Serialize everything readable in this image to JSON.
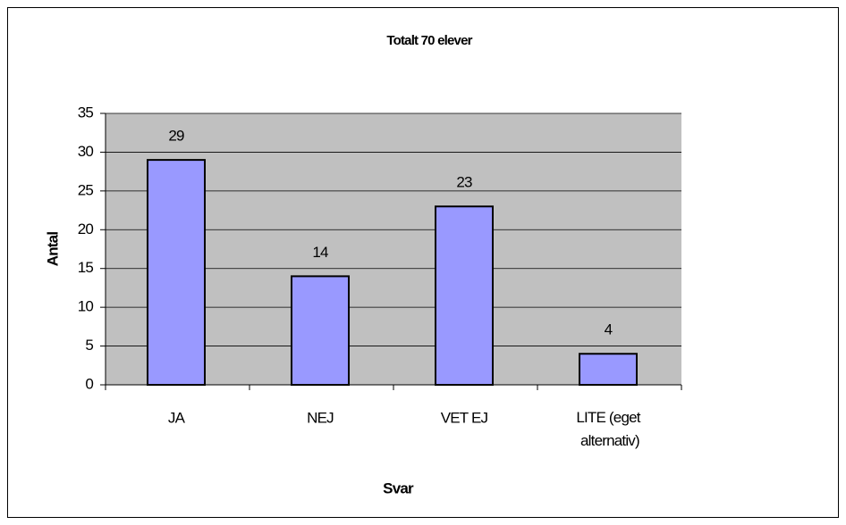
{
  "chart_data": {
    "type": "bar",
    "title": "Totalt 70 elever",
    "x_label": "Svar",
    "y_label": "Antal",
    "categories": [
      "JA",
      "NEJ",
      "VET EJ",
      "LITE (eget alternativ)"
    ],
    "values": [
      29,
      14,
      23,
      4
    ],
    "color": "#9999ff",
    "plot_background": "#c0c0c0",
    "ylim": [
      0,
      35
    ],
    "yticks": [
      0,
      5,
      10,
      15,
      20,
      25,
      30,
      35
    ],
    "grid": true
  }
}
